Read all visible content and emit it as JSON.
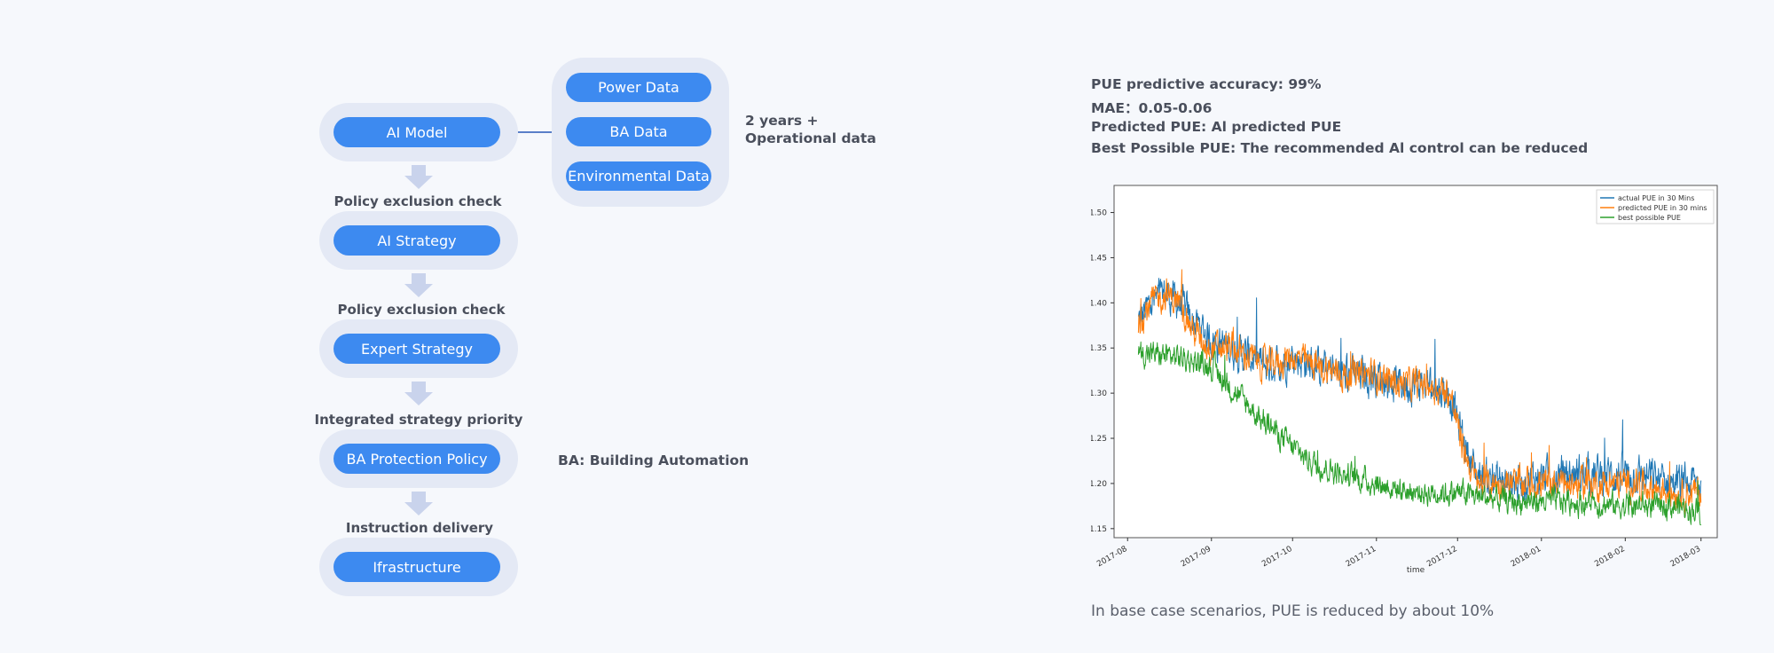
{
  "flow": {
    "ai_model": "AI Model",
    "data_sources": [
      "Power Data",
      "BA Data",
      "Environmental Data"
    ],
    "data_note_line1": "2 years +",
    "data_note_line2": "Operational data",
    "steps": [
      "Policy exclusion check",
      "Policy exclusion check",
      "Integrated strategy priority",
      "Instruction delivery"
    ],
    "nodes": [
      "AI Strategy",
      "Expert Strategy",
      "BA Protection Policy",
      "Ifrastructure"
    ],
    "ba_note": "BA: Building Automation"
  },
  "info": {
    "lines": [
      "PUE predictive accuracy: 99%",
      "MAE：0.05-0.06",
      "Predicted PUE: Al predicted PUE",
      "Best Possible PUE: The recommended Al control can be reduced"
    ],
    "footer": "In base case scenarios, PUE is reduced by about 10%"
  },
  "colors": {
    "node": "#3d8af0",
    "pill": "#e4e9f5",
    "arrow": "#c9d3ec",
    "actual": "#1f77b4",
    "predicted": "#ff7f0e",
    "best": "#2ca02c"
  },
  "chart_data": {
    "type": "line",
    "xlabel": "time",
    "ylabel": "",
    "x_ticks": [
      "2017-08",
      "2017-09",
      "2017-10",
      "2017-11",
      "2017-12",
      "2018-01",
      "2018-02",
      "2018-03"
    ],
    "x_range": [
      "2017-07-27",
      "2018-03-07"
    ],
    "ylim": [
      1.14,
      1.53
    ],
    "y_ticks": [
      1.15,
      1.2,
      1.25,
      1.3,
      1.35,
      1.4,
      1.45,
      1.5
    ],
    "legend_position": "top-right",
    "series": [
      {
        "name": "actual PUE in 30 Mins",
        "color": "#1f77b4",
        "noise": 0.018,
        "points": [
          [
            "2017-08-05",
            1.38
          ],
          [
            "2017-08-10",
            1.4
          ],
          [
            "2017-08-15",
            1.41
          ],
          [
            "2017-08-20",
            1.4
          ],
          [
            "2017-08-25",
            1.38
          ],
          [
            "2017-09-01",
            1.36
          ],
          [
            "2017-09-08",
            1.35
          ],
          [
            "2017-09-15",
            1.34
          ],
          [
            "2017-09-22",
            1.33
          ],
          [
            "2017-10-01",
            1.34
          ],
          [
            "2017-10-10",
            1.33
          ],
          [
            "2017-10-20",
            1.32
          ],
          [
            "2017-11-01",
            1.32
          ],
          [
            "2017-11-10",
            1.31
          ],
          [
            "2017-11-20",
            1.31
          ],
          [
            "2017-11-28",
            1.3
          ],
          [
            "2017-12-03",
            1.25
          ],
          [
            "2017-12-08",
            1.21
          ],
          [
            "2017-12-20",
            1.2
          ],
          [
            "2018-01-05",
            1.21
          ],
          [
            "2018-01-20",
            1.21
          ],
          [
            "2018-02-05",
            1.21
          ],
          [
            "2018-02-20",
            1.2
          ],
          [
            "2018-03-01",
            1.2
          ]
        ]
      },
      {
        "name": "predicted PUE in 30 mins",
        "color": "#ff7f0e",
        "noise": 0.015,
        "points": [
          [
            "2017-08-05",
            1.38
          ],
          [
            "2017-08-10",
            1.4
          ],
          [
            "2017-08-15",
            1.41
          ],
          [
            "2017-08-20",
            1.4
          ],
          [
            "2017-08-25",
            1.37
          ],
          [
            "2017-09-01",
            1.35
          ],
          [
            "2017-09-08",
            1.35
          ],
          [
            "2017-09-15",
            1.34
          ],
          [
            "2017-09-22",
            1.33
          ],
          [
            "2017-10-01",
            1.34
          ],
          [
            "2017-10-10",
            1.33
          ],
          [
            "2017-10-20",
            1.32
          ],
          [
            "2017-11-01",
            1.32
          ],
          [
            "2017-11-10",
            1.31
          ],
          [
            "2017-11-20",
            1.31
          ],
          [
            "2017-11-28",
            1.3
          ],
          [
            "2017-12-03",
            1.24
          ],
          [
            "2017-12-08",
            1.2
          ],
          [
            "2017-12-20",
            1.2
          ],
          [
            "2018-01-05",
            1.2
          ],
          [
            "2018-01-20",
            1.2
          ],
          [
            "2018-02-05",
            1.2
          ],
          [
            "2018-02-20",
            1.19
          ],
          [
            "2018-03-01",
            1.19
          ]
        ]
      },
      {
        "name": "best possible PUE",
        "color": "#2ca02c",
        "noise": 0.012,
        "points": [
          [
            "2017-08-05",
            1.345
          ],
          [
            "2017-08-20",
            1.34
          ],
          [
            "2017-09-01",
            1.33
          ],
          [
            "2017-09-10",
            1.3
          ],
          [
            "2017-09-20",
            1.27
          ],
          [
            "2017-10-01",
            1.24
          ],
          [
            "2017-10-10",
            1.22
          ],
          [
            "2017-10-20",
            1.21
          ],
          [
            "2017-11-01",
            1.2
          ],
          [
            "2017-11-15",
            1.19
          ],
          [
            "2017-12-01",
            1.19
          ],
          [
            "2017-12-20",
            1.18
          ],
          [
            "2018-01-10",
            1.18
          ],
          [
            "2018-02-01",
            1.175
          ],
          [
            "2018-02-20",
            1.175
          ],
          [
            "2018-03-01",
            1.17
          ]
        ]
      }
    ]
  }
}
